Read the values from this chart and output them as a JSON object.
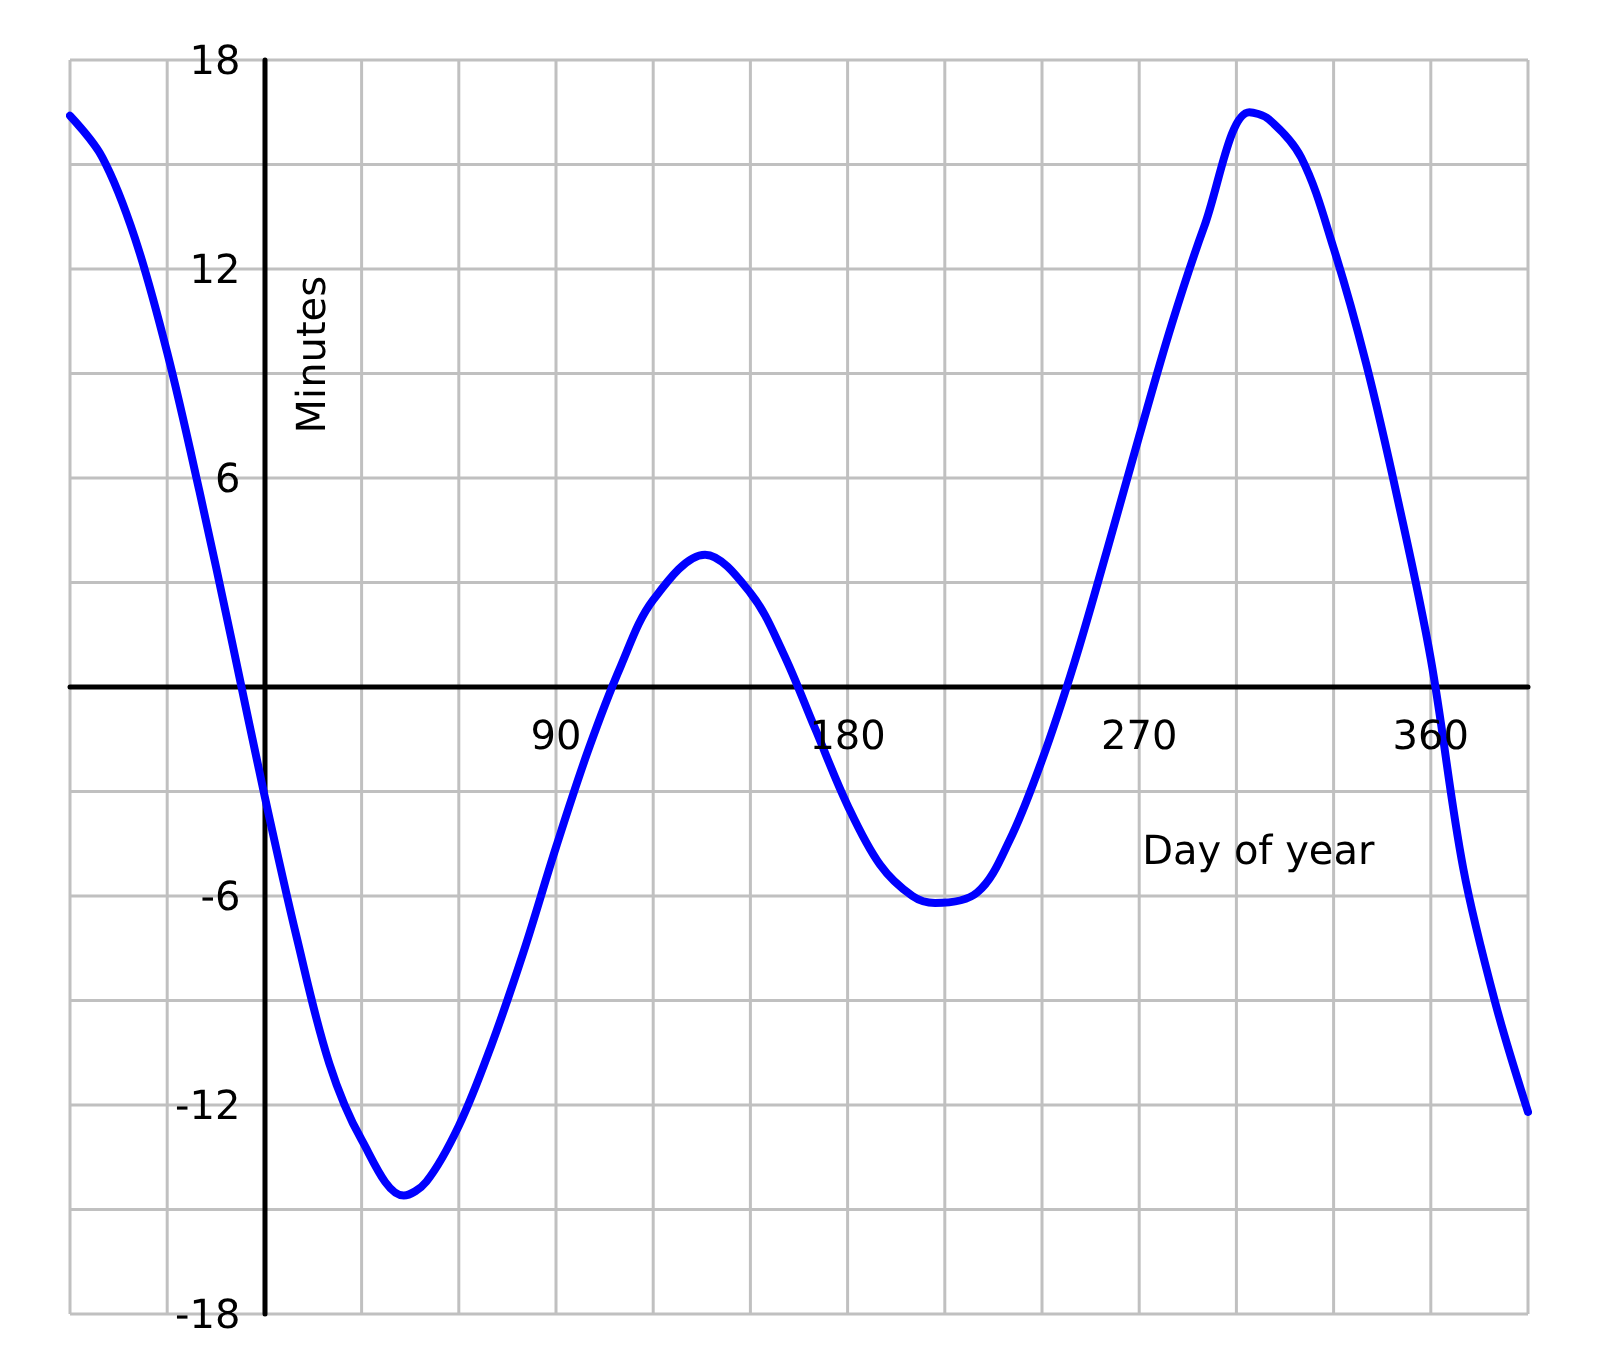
{
  "chart_data": {
    "type": "line",
    "xlabel": "Day of year",
    "ylabel": "Minutes",
    "x": [
      -60,
      -50,
      -40,
      -30,
      -20,
      -10,
      0,
      10,
      20,
      30,
      43,
      50,
      60,
      70,
      80,
      90,
      100,
      110,
      120,
      136,
      150,
      160,
      170,
      180,
      190,
      200,
      207,
      220,
      230,
      240,
      250,
      260,
      270,
      280,
      290,
      304,
      310,
      320,
      330,
      340,
      350,
      360,
      370,
      380,
      390
    ],
    "series": [
      {
        "color": "#0000ff",
        "values": [
          16.4,
          15.2,
          12.9,
          9.6,
          5.6,
          1.3,
          -3.1,
          -7.2,
          -10.8,
          -13.0,
          -14.6,
          -14.2,
          -12.6,
          -10.3,
          -7.6,
          -4.6,
          -1.8,
          0.6,
          2.5,
          3.8,
          2.7,
          1.0,
          -1.2,
          -3.4,
          -5.1,
          -6.0,
          -6.2,
          -5.9,
          -4.4,
          -2.1,
          0.7,
          3.9,
          7.2,
          10.4,
          13.2,
          16.5,
          16.3,
          15.2,
          12.6,
          9.3,
          5.3,
          0.8,
          -5.2,
          -9.1,
          -12.2
        ]
      }
    ],
    "xlim": [
      -60,
      390
    ],
    "xticks": [
      {
        "value": -60,
        "label": null
      },
      {
        "value": -30,
        "label": null
      },
      {
        "value": 0,
        "label": null
      },
      {
        "value": 30,
        "label": null
      },
      {
        "value": 60,
        "label": null
      },
      90,
      {
        "value": 120,
        "label": null
      },
      {
        "value": 150,
        "label": null
      },
      180,
      {
        "value": 210,
        "label": null
      },
      {
        "value": 240,
        "label": null
      },
      270,
      {
        "value": 300,
        "label": null
      },
      {
        "value": 330,
        "label": null
      },
      360,
      {
        "value": 390,
        "label": null
      }
    ],
    "ylim": [
      -18,
      18
    ],
    "yticks": [
      -18,
      {
        "value": -15,
        "label": null
      },
      -12,
      {
        "value": -9,
        "label": null
      },
      -6,
      {
        "value": -3,
        "label": null
      },
      {
        "value": 0,
        "label": null
      },
      {
        "value": 3,
        "label": null
      },
      6,
      {
        "value": 9,
        "label": null
      },
      12,
      {
        "value": 15,
        "label": null
      },
      18
    ],
    "grid": true,
    "marker": "none",
    "line_style": "solid"
  }
}
